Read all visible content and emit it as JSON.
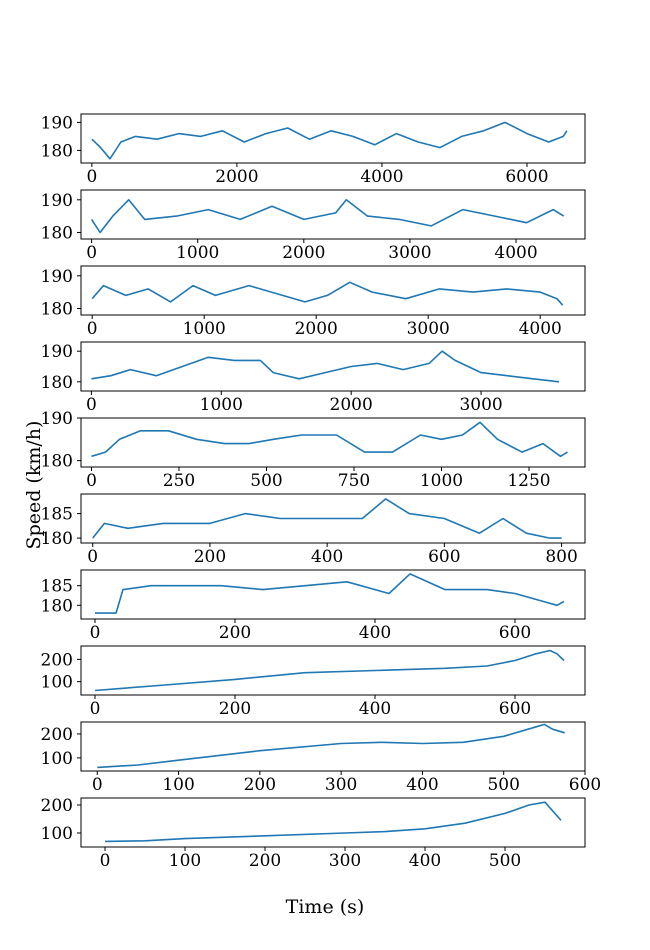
{
  "figure": {
    "xlabel": "Time (s)",
    "ylabel": "Speed (km/h)"
  },
  "chart_data": [
    {
      "type": "line",
      "xlim": [
        -150,
        6800
      ],
      "ylim": [
        175.5,
        193
      ],
      "xticks": [
        0,
        2000,
        4000,
        6000
      ],
      "yticks": [
        180,
        190
      ],
      "x": [
        0,
        120,
        250,
        400,
        600,
        900,
        1200,
        1500,
        1800,
        2100,
        2400,
        2700,
        3000,
        3300,
        3600,
        3900,
        4200,
        4500,
        4800,
        5100,
        5400,
        5700,
        6000,
        6300,
        6500,
        6550
      ],
      "y": [
        184,
        181,
        177,
        183,
        185,
        184,
        186,
        185,
        187,
        183,
        186,
        188,
        184,
        187,
        185,
        182,
        186,
        183,
        181,
        185,
        187,
        190,
        186,
        183,
        185,
        187
      ]
    },
    {
      "type": "line",
      "xlim": [
        -100,
        4650
      ],
      "ylim": [
        178,
        193
      ],
      "xticks": [
        0,
        1000,
        2000,
        3000,
        4000
      ],
      "yticks": [
        180,
        190
      ],
      "x": [
        0,
        80,
        200,
        350,
        500,
        800,
        1100,
        1400,
        1700,
        2000,
        2300,
        2400,
        2600,
        2900,
        3200,
        3500,
        3800,
        4100,
        4350,
        4450
      ],
      "y": [
        184,
        180,
        185,
        190,
        184,
        185,
        187,
        184,
        188,
        184,
        186,
        190,
        185,
        184,
        182,
        187,
        185,
        183,
        187,
        185
      ]
    },
    {
      "type": "line",
      "xlim": [
        -100,
        4400
      ],
      "ylim": [
        178,
        193
      ],
      "xticks": [
        0,
        1000,
        2000,
        3000,
        4000
      ],
      "yticks": [
        180,
        190
      ],
      "x": [
        0,
        100,
        300,
        500,
        700,
        900,
        1100,
        1400,
        1700,
        1900,
        2100,
        2300,
        2500,
        2800,
        3100,
        3400,
        3700,
        4000,
        4150,
        4200
      ],
      "y": [
        183,
        187,
        184,
        186,
        182,
        187,
        184,
        187,
        184,
        182,
        184,
        188,
        185,
        183,
        186,
        185,
        186,
        185,
        183,
        181
      ]
    },
    {
      "type": "line",
      "xlim": [
        -80,
        3800
      ],
      "ylim": [
        177,
        193
      ],
      "xticks": [
        0,
        1000,
        2000,
        3000
      ],
      "yticks": [
        180,
        190
      ],
      "x": [
        0,
        150,
        300,
        500,
        700,
        900,
        1100,
        1300,
        1400,
        1600,
        1800,
        2000,
        2200,
        2400,
        2600,
        2700,
        2800,
        3000,
        3200,
        3400,
        3600
      ],
      "y": [
        181,
        182,
        184,
        182,
        185,
        188,
        187,
        187,
        183,
        181,
        183,
        185,
        186,
        184,
        186,
        190,
        187,
        183,
        182,
        181,
        180
      ]
    },
    {
      "type": "line",
      "xlim": [
        -30,
        1410
      ],
      "ylim": [
        178.5,
        190
      ],
      "xticks": [
        0,
        250,
        500,
        750,
        1000,
        1250
      ],
      "yticks": [
        180,
        190
      ],
      "x": [
        0,
        40,
        80,
        140,
        220,
        300,
        380,
        450,
        520,
        600,
        700,
        780,
        860,
        940,
        1000,
        1060,
        1110,
        1160,
        1230,
        1290,
        1340,
        1360
      ],
      "y": [
        181,
        182,
        185,
        187,
        187,
        185,
        184,
        184,
        185,
        186,
        186,
        182,
        182,
        186,
        185,
        186,
        189,
        185,
        182,
        184,
        181,
        182
      ]
    },
    {
      "type": "line",
      "xlim": [
        -20,
        840
      ],
      "ylim": [
        179,
        189
      ],
      "xticks": [
        0,
        200,
        400,
        600,
        800
      ],
      "yticks": [
        180,
        185
      ],
      "x": [
        0,
        20,
        60,
        120,
        200,
        260,
        320,
        400,
        460,
        500,
        540,
        600,
        660,
        700,
        740,
        780,
        800
      ],
      "y": [
        180,
        183,
        182,
        183,
        183,
        185,
        184,
        184,
        184,
        188,
        185,
        184,
        181,
        184,
        181,
        180,
        180
      ]
    },
    {
      "type": "line",
      "xlim": [
        -20,
        700
      ],
      "ylim": [
        176.5,
        189
      ],
      "xticks": [
        0,
        200,
        400,
        600
      ],
      "yticks": [
        180,
        185
      ],
      "x": [
        0,
        30,
        40,
        80,
        120,
        180,
        240,
        300,
        360,
        420,
        450,
        500,
        560,
        600,
        640,
        660,
        670
      ],
      "y": [
        178,
        178,
        184,
        185,
        185,
        185,
        184,
        185,
        186,
        183,
        188,
        184,
        184,
        183,
        181,
        180,
        181
      ]
    },
    {
      "type": "line",
      "xlim": [
        -20,
        700
      ],
      "ylim": [
        40,
        260
      ],
      "xticks": [
        0,
        200,
        400,
        600
      ],
      "yticks": [
        100,
        200
      ],
      "x": [
        0,
        40,
        100,
        200,
        300,
        400,
        500,
        560,
        600,
        630,
        650,
        660,
        670
      ],
      "y": [
        60,
        70,
        85,
        110,
        140,
        150,
        160,
        170,
        195,
        225,
        240,
        225,
        195
      ]
    },
    {
      "type": "line",
      "xlim": [
        -20,
        600
      ],
      "ylim": [
        45,
        250
      ],
      "xticks": [
        0,
        100,
        200,
        300,
        400,
        500,
        600
      ],
      "yticks": [
        100,
        200
      ],
      "x": [
        0,
        50,
        100,
        200,
        300,
        350,
        400,
        450,
        500,
        540,
        550,
        560,
        575
      ],
      "y": [
        60,
        70,
        90,
        130,
        160,
        165,
        160,
        165,
        190,
        230,
        240,
        220,
        205
      ]
    },
    {
      "type": "line",
      "xlim": [
        -30,
        600
      ],
      "ylim": [
        50,
        225
      ],
      "xticks": [
        0,
        100,
        200,
        300,
        400,
        500
      ],
      "yticks": [
        100,
        200
      ],
      "x": [
        0,
        50,
        100,
        200,
        300,
        350,
        400,
        450,
        500,
        530,
        550,
        570
      ],
      "y": [
        70,
        72,
        80,
        90,
        100,
        105,
        115,
        135,
        170,
        200,
        210,
        145
      ]
    }
  ]
}
